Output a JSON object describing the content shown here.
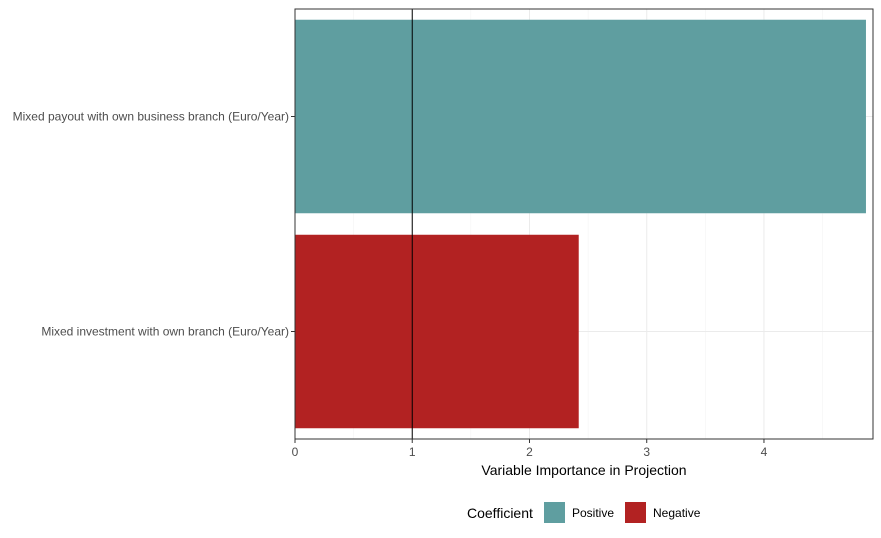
{
  "chart_data": {
    "type": "bar",
    "orientation": "horizontal",
    "categories": [
      "Mixed payout with own business branch (Euro/Year)",
      "Mixed investment with own branch (Euro/Year)"
    ],
    "values": [
      4.87,
      2.42
    ],
    "coefficient": [
      "Positive",
      "Negative"
    ],
    "xlabel": "Variable Importance in Projection",
    "ylabel": "",
    "xlim": [
      0,
      4.93
    ],
    "xticks": [
      0,
      1,
      2,
      3,
      4
    ],
    "xtick_labels": [
      "0",
      "1",
      "2",
      "3",
      "4"
    ],
    "reference_line": 1,
    "grid": true,
    "legend": {
      "title": "Coefficient",
      "position": "bottom",
      "entries": [
        {
          "label": "Positive",
          "color": "#5f9ea0"
        },
        {
          "label": "Negative",
          "color": "#b22222"
        }
      ]
    },
    "colors": {
      "Positive": "#5f9ea0",
      "Negative": "#b22222"
    }
  }
}
